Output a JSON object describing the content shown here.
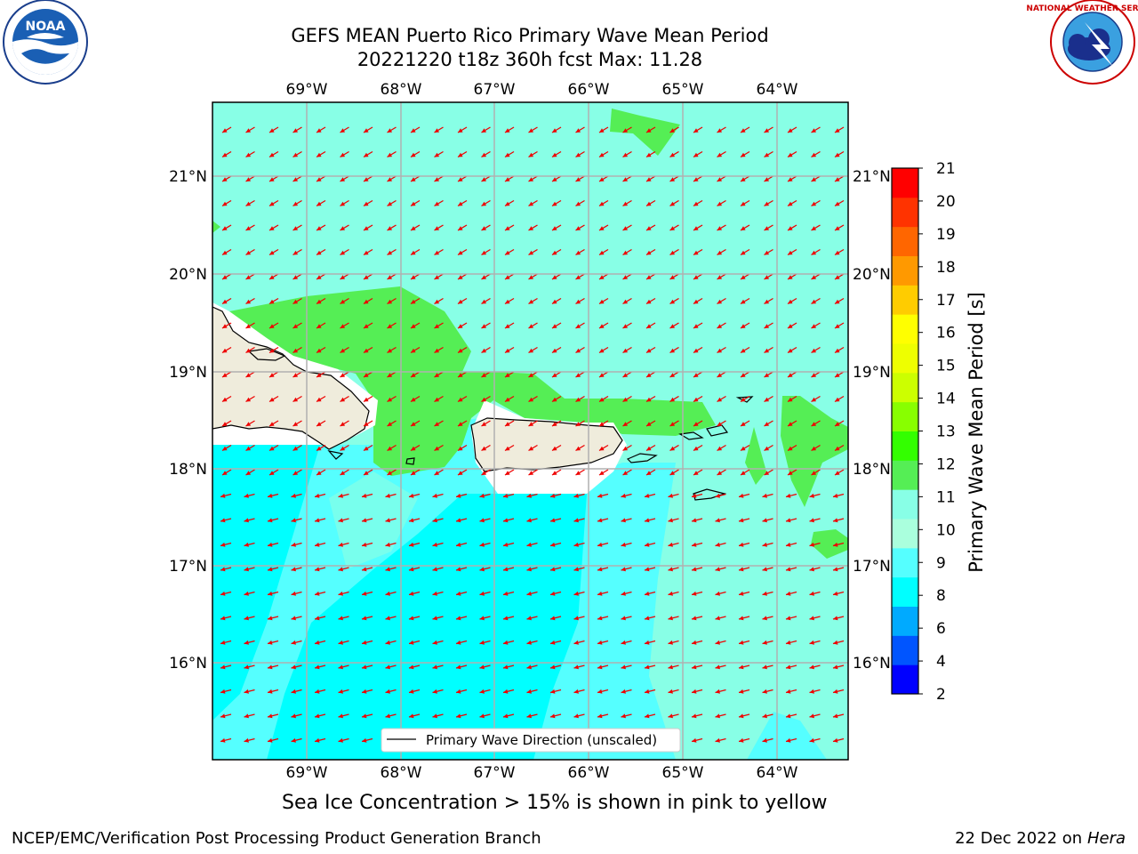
{
  "title_line1": "GEFS MEAN Puerto Rico Primary Wave Mean Period",
  "title_line2": "20221220 t18z 360h fcst   Max: 11.28",
  "lon_labels": [
    "69°W",
    "68°W",
    "67°W",
    "66°W",
    "65°W",
    "64°W"
  ],
  "lat_labels": [
    "21°N",
    "20°N",
    "19°N",
    "18°N",
    "17°N",
    "16°N"
  ],
  "legend_label": "Primary Wave Direction (unscaled)",
  "colorbar": {
    "label": "Primary Wave Mean Period [s]",
    "ticks": [
      "21",
      "20",
      "19",
      "18",
      "17",
      "16",
      "15",
      "14",
      "13",
      "12",
      "11",
      "10",
      "9",
      "8",
      "6",
      "4",
      "2"
    ],
    "colors_bottom_to_top": [
      "#0000ff",
      "#0055ff",
      "#00aaff",
      "#00ffff",
      "#55ffff",
      "#aaffdd",
      "#88ffe6",
      "#55ee55",
      "#33ff00",
      "#88ff00",
      "#ccff00",
      "#eeff00",
      "#ffff00",
      "#ffcc00",
      "#ff9900",
      "#ff6600",
      "#ff3300",
      "#ff0000"
    ]
  },
  "caption": "Sea Ice Concentration > 15% is shown in pink to yellow",
  "footer_left": "NCEP/EMC/Verification Post Processing Product Generation Branch",
  "footer_date": "22 Dec 2022 on",
  "footer_host": "Hera",
  "logos": {
    "left": "noaa-logo",
    "right": "national-weather-service-logo",
    "noaa_text": "NOAA",
    "nws_text": "NATIONAL WEATHER SERVICE"
  },
  "colors": {
    "arrow": "#ee0000",
    "land": "#efecdc",
    "grid": "#b0b0b0"
  }
}
